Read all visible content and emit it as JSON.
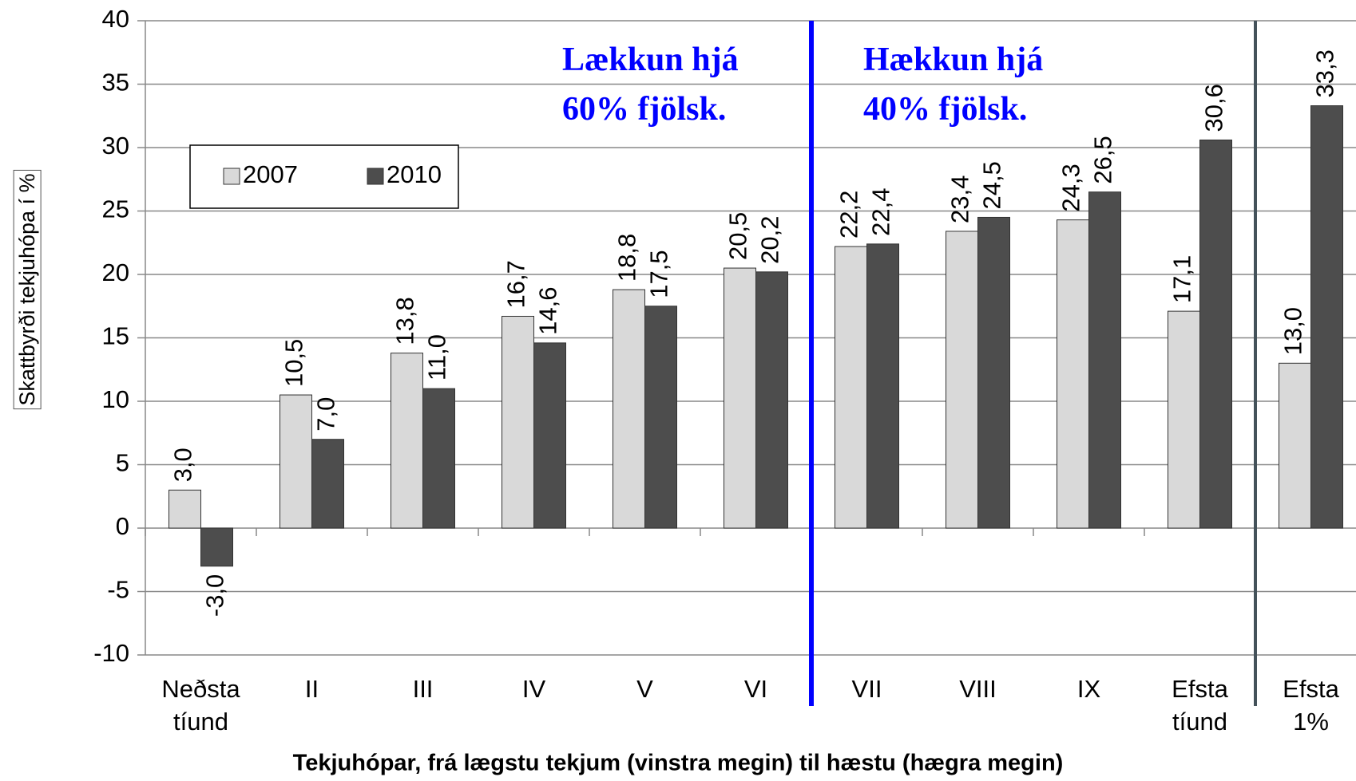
{
  "chart_data": {
    "type": "bar",
    "x_label": "Tekjuhópar, frá lægstu tekjum (vinstra megin) til hæstu (hægra megin)",
    "y_label": "Skattbyrði tekjuhópa í %",
    "categories": [
      "Neðsta tíund",
      "II",
      "III",
      "IV",
      "V",
      "VI",
      "VII",
      "VIII",
      "IX",
      "Efsta tíund",
      "Efsta 1%"
    ],
    "series": [
      {
        "name": "2007",
        "color": "#d9d9d9",
        "values": [
          3.0,
          10.5,
          13.8,
          16.7,
          18.8,
          20.5,
          22.2,
          23.4,
          24.3,
          17.1,
          13.0
        ],
        "value_labels": [
          "3,0",
          "10,5",
          "13,8",
          "16,7",
          "18,8",
          "20,5",
          "22,2",
          "23,4",
          "24,3",
          "17,1",
          "13,0"
        ]
      },
      {
        "name": "2010",
        "color": "#4d4d4d",
        "values": [
          -3.0,
          7.0,
          11.0,
          14.6,
          17.5,
          20.2,
          22.4,
          24.5,
          26.5,
          30.6,
          33.3
        ],
        "value_labels": [
          "-3,0",
          "7,0",
          "11,0",
          "14,6",
          "17,5",
          "20,2",
          "22,4",
          "24,5",
          "26,5",
          "30,6",
          "33,3"
        ]
      }
    ],
    "annotations": [
      [
        "Lækkun hjá",
        "60% fjölsk."
      ],
      [
        "Hækkun hjá",
        "40% fjölsk."
      ]
    ],
    "ylim": [
      -10,
      40
    ],
    "yticks": [
      -10,
      -5,
      0,
      5,
      10,
      15,
      20,
      25,
      30,
      35,
      40
    ],
    "grid": true,
    "legend": "upper left"
  }
}
